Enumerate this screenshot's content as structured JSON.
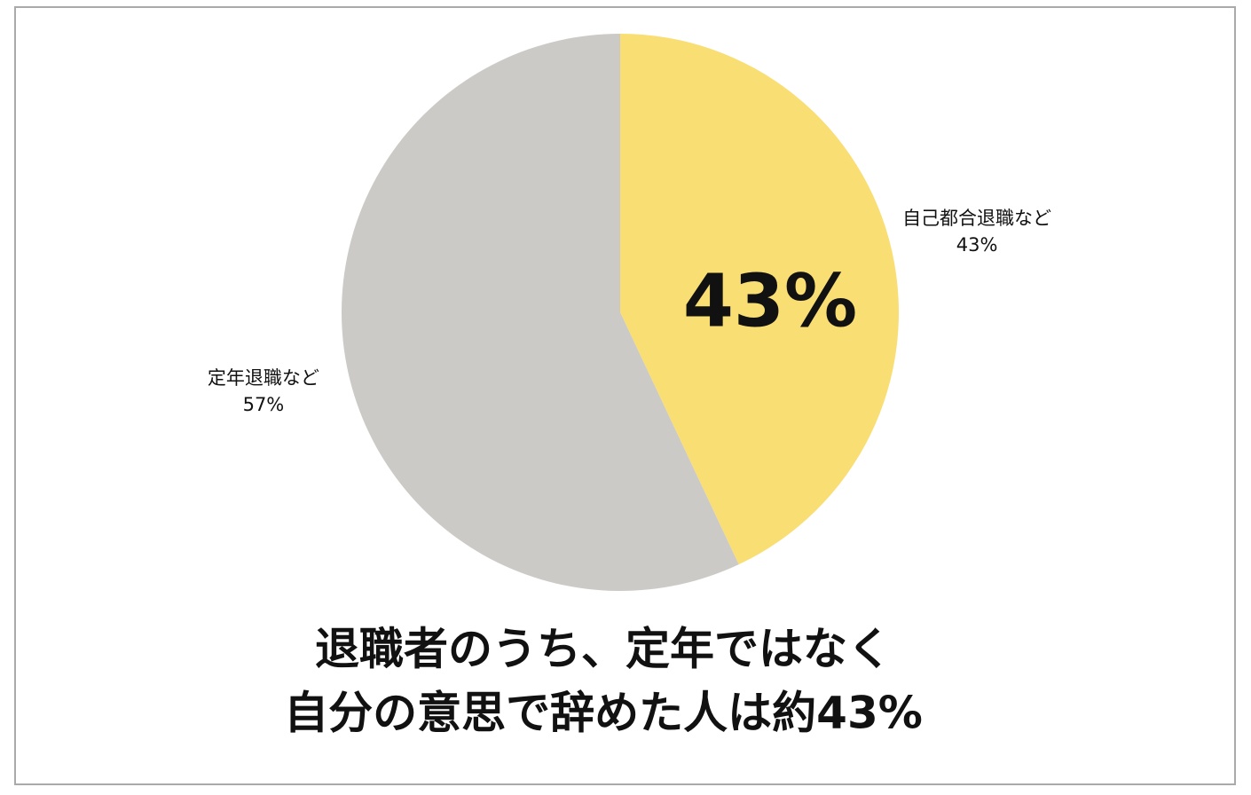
{
  "chart_data": {
    "type": "pie",
    "title": [
      "退職者のうち、定年ではなく",
      "自分の意思で辞めた人は約43%"
    ],
    "annotation": "43%",
    "categories": [
      "自己都合退職など",
      "定年退職など"
    ],
    "values": [
      43,
      57
    ],
    "value_labels": [
      "43%",
      "57%"
    ],
    "colors": [
      "#f9de74",
      "#cbcac6"
    ]
  }
}
